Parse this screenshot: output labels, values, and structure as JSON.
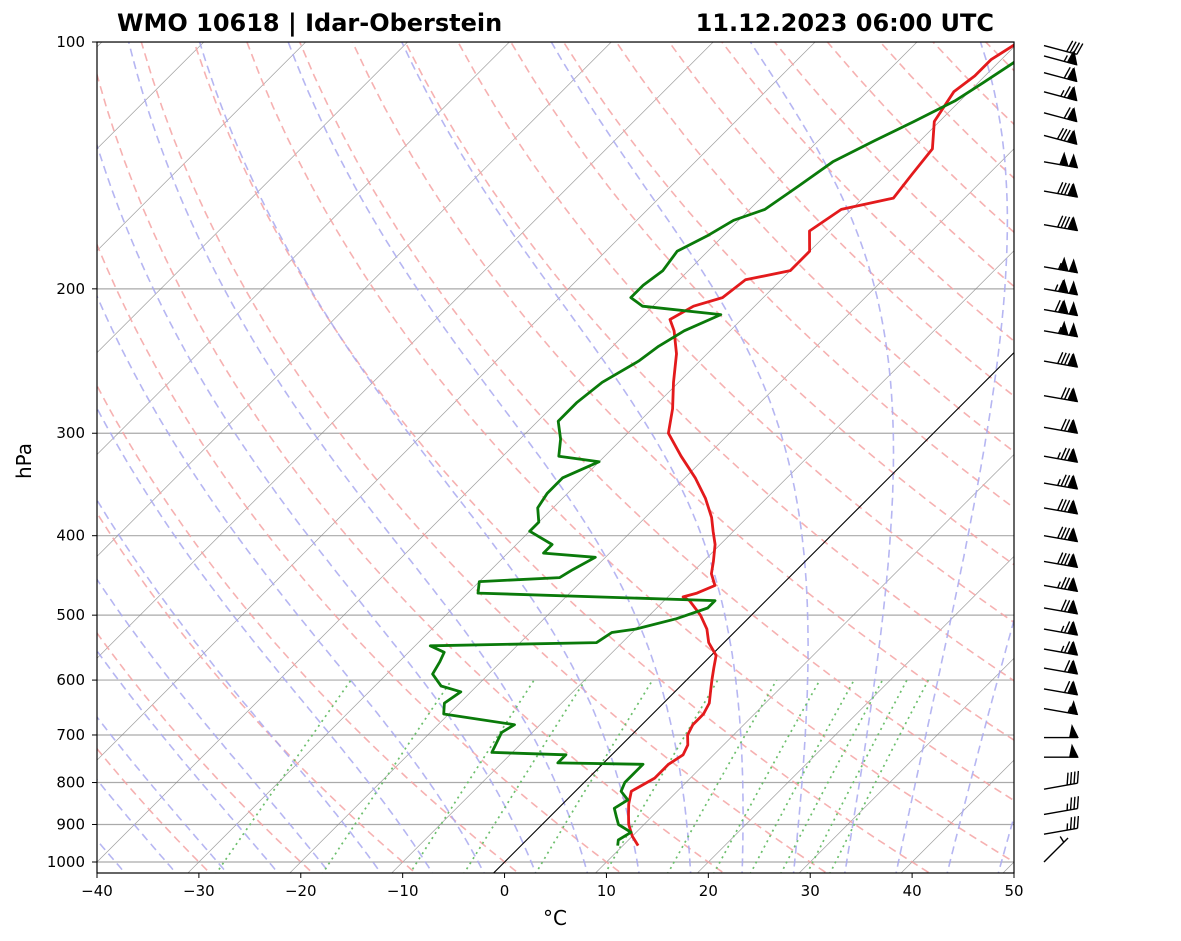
{
  "chart_data": {
    "type": "line",
    "title_left": "WMO 10618 | Idar-Oberstein",
    "title_right": "11.12.2023 06:00 UTC",
    "xlabel": "°C",
    "ylabel": "hPa",
    "xlim": [
      -40,
      50
    ],
    "ylim_hPa": [
      1050,
      100
    ],
    "x_ticks": [
      "−40",
      "−30",
      "−20",
      "−10",
      "0",
      "10",
      "20",
      "30",
      "40",
      "50"
    ],
    "x_tick_values": [
      -40,
      -30,
      -20,
      -10,
      0,
      10,
      20,
      30,
      40,
      50
    ],
    "y_ticks": [
      "100",
      "200",
      "300",
      "400",
      "500",
      "600",
      "700",
      "800",
      "900",
      "1000"
    ],
    "y_tick_values": [
      100,
      200,
      300,
      400,
      500,
      600,
      700,
      800,
      900,
      1000
    ],
    "colors": {
      "temperature": "#e31a1c",
      "dewpoint": "#0a7a0a",
      "dry_adiabat": "#f4a3a3",
      "moist_adiabat": "#a9a9f0",
      "mixing_ratio": "#6cbf6c",
      "isotherm": "#7f7f7f",
      "isobar": "#aaaaaa",
      "zero_isotherm": "#000000"
    },
    "series": [
      {
        "name": "Temperature",
        "points": [
          [
            11.5,
            955
          ],
          [
            10.0,
            930
          ],
          [
            8.5,
            900
          ],
          [
            7.5,
            875
          ],
          [
            6.5,
            850
          ],
          [
            5.5,
            820
          ],
          [
            6.5,
            790
          ],
          [
            6.5,
            760
          ],
          [
            7.0,
            740
          ],
          [
            6.5,
            720
          ],
          [
            5.5,
            700
          ],
          [
            5.0,
            680
          ],
          [
            5.0,
            660
          ],
          [
            4.5,
            640
          ],
          [
            3.5,
            620
          ],
          [
            2.5,
            600
          ],
          [
            1.5,
            580
          ],
          [
            0.5,
            560
          ],
          [
            -1.5,
            540
          ],
          [
            -3.0,
            520
          ],
          [
            -5.0,
            500
          ],
          [
            -7.5,
            480
          ],
          [
            -8.5,
            475
          ],
          [
            -7.5,
            470
          ],
          [
            -6.5,
            460
          ],
          [
            -8.0,
            445
          ],
          [
            -9.0,
            430
          ],
          [
            -10.5,
            410
          ],
          [
            -12.0,
            395
          ],
          [
            -13.5,
            380
          ],
          [
            -16.0,
            360
          ],
          [
            -19.0,
            340
          ],
          [
            -22.5,
            320
          ],
          [
            -26.0,
            300
          ],
          [
            -28.0,
            280
          ],
          [
            -30.5,
            260
          ],
          [
            -33.0,
            240
          ],
          [
            -35.5,
            225
          ],
          [
            -37.0,
            218
          ],
          [
            -36.0,
            210
          ],
          [
            -34.0,
            205
          ],
          [
            -33.5,
            195
          ],
          [
            -30.0,
            190
          ],
          [
            -30.0,
            180
          ],
          [
            -32.0,
            170
          ],
          [
            -31.0,
            160
          ],
          [
            -27.0,
            155
          ],
          [
            -27.5,
            145
          ],
          [
            -28.0,
            135
          ],
          [
            -30.5,
            125
          ],
          [
            -31.5,
            115
          ],
          [
            -31.0,
            110
          ],
          [
            -31.0,
            105
          ],
          [
            -30.0,
            100
          ]
        ]
      },
      {
        "name": "Dewpoint",
        "points": [
          [
            9.5,
            955
          ],
          [
            9.0,
            940
          ],
          [
            9.5,
            920
          ],
          [
            7.5,
            900
          ],
          [
            6.5,
            880
          ],
          [
            5.5,
            860
          ],
          [
            6.0,
            840
          ],
          [
            4.5,
            820
          ],
          [
            4.0,
            800
          ],
          [
            4.0,
            780
          ],
          [
            4.0,
            760
          ],
          [
            -4.5,
            757
          ],
          [
            -4.5,
            740
          ],
          [
            -12.0,
            735
          ],
          [
            -12.5,
            715
          ],
          [
            -13.0,
            695
          ],
          [
            -12.5,
            680
          ],
          [
            -20.5,
            660
          ],
          [
            -21.5,
            640
          ],
          [
            -21.0,
            620
          ],
          [
            -23.5,
            610
          ],
          [
            -25.5,
            590
          ],
          [
            -26.0,
            570
          ],
          [
            -26.5,
            555
          ],
          [
            -28.5,
            545
          ],
          [
            -12.5,
            540
          ],
          [
            -12.0,
            525
          ],
          [
            -10.0,
            520
          ],
          [
            -7.0,
            505
          ],
          [
            -5.0,
            490
          ],
          [
            -5.0,
            480
          ],
          [
            -29.0,
            470
          ],
          [
            -30.0,
            455
          ],
          [
            -22.5,
            450
          ],
          [
            -22.0,
            440
          ],
          [
            -21.0,
            425
          ],
          [
            -26.5,
            420
          ],
          [
            -26.5,
            410
          ],
          [
            -30.0,
            395
          ],
          [
            -30.0,
            385
          ],
          [
            -31.5,
            370
          ],
          [
            -32.0,
            355
          ],
          [
            -32.0,
            340
          ],
          [
            -30.0,
            325
          ],
          [
            -34.5,
            320
          ],
          [
            -36.0,
            305
          ],
          [
            -38.0,
            290
          ],
          [
            -38.0,
            275
          ],
          [
            -37.5,
            260
          ],
          [
            -36.0,
            245
          ],
          [
            -35.5,
            235
          ],
          [
            -34.5,
            225
          ],
          [
            -32.5,
            215
          ],
          [
            -41.0,
            210
          ],
          [
            -43.0,
            205
          ],
          [
            -43.0,
            198
          ],
          [
            -42.5,
            190
          ],
          [
            -43.0,
            180
          ],
          [
            -41.5,
            172
          ],
          [
            -40.5,
            165
          ],
          [
            -38.5,
            160
          ],
          [
            -37.5,
            150
          ],
          [
            -36.5,
            140
          ],
          [
            -34.5,
            132
          ],
          [
            -32.5,
            125
          ],
          [
            -30.5,
            118
          ],
          [
            -29.5,
            112
          ],
          [
            -28.5,
            106
          ],
          [
            -28.0,
            100
          ]
        ]
      }
    ],
    "wind_barbs": [
      {
        "p": 1000,
        "speed_kt": 5,
        "dir": 225
      },
      {
        "p": 925,
        "speed_kt": 35,
        "dir": 260
      },
      {
        "p": 875,
        "speed_kt": 35,
        "dir": 260
      },
      {
        "p": 815,
        "speed_kt": 40,
        "dir": 260
      },
      {
        "p": 745,
        "speed_kt": 50,
        "dir": 270
      },
      {
        "p": 705,
        "speed_kt": 50,
        "dir": 270
      },
      {
        "p": 650,
        "speed_kt": 55,
        "dir": 280
      },
      {
        "p": 615,
        "speed_kt": 70,
        "dir": 280
      },
      {
        "p": 580,
        "speed_kt": 70,
        "dir": 280
      },
      {
        "p": 550,
        "speed_kt": 75,
        "dir": 280
      },
      {
        "p": 520,
        "speed_kt": 75,
        "dir": 280
      },
      {
        "p": 490,
        "speed_kt": 80,
        "dir": 280
      },
      {
        "p": 460,
        "speed_kt": 85,
        "dir": 280
      },
      {
        "p": 430,
        "speed_kt": 90,
        "dir": 280
      },
      {
        "p": 400,
        "speed_kt": 90,
        "dir": 280
      },
      {
        "p": 370,
        "speed_kt": 90,
        "dir": 280
      },
      {
        "p": 345,
        "speed_kt": 85,
        "dir": 280
      },
      {
        "p": 320,
        "speed_kt": 85,
        "dir": 280
      },
      {
        "p": 295,
        "speed_kt": 80,
        "dir": 280
      },
      {
        "p": 270,
        "speed_kt": 80,
        "dir": 280
      },
      {
        "p": 245,
        "speed_kt": 90,
        "dir": 280
      },
      {
        "p": 225,
        "speed_kt": 105,
        "dir": 280
      },
      {
        "p": 212,
        "speed_kt": 120,
        "dir": 280
      },
      {
        "p": 200,
        "speed_kt": 115,
        "dir": 280
      },
      {
        "p": 188,
        "speed_kt": 105,
        "dir": 280
      },
      {
        "p": 167,
        "speed_kt": 90,
        "dir": 280
      },
      {
        "p": 152,
        "speed_kt": 90,
        "dir": 280
      },
      {
        "p": 140,
        "speed_kt": 100,
        "dir": 280
      },
      {
        "p": 130,
        "speed_kt": 90,
        "dir": 285
      },
      {
        "p": 122,
        "speed_kt": 70,
        "dir": 285
      },
      {
        "p": 115,
        "speed_kt": 75,
        "dir": 285
      },
      {
        "p": 109,
        "speed_kt": 70,
        "dir": 285
      },
      {
        "p": 104,
        "speed_kt": 65,
        "dir": 285
      },
      {
        "p": 101,
        "speed_kt": 40,
        "dir": 285
      }
    ]
  }
}
